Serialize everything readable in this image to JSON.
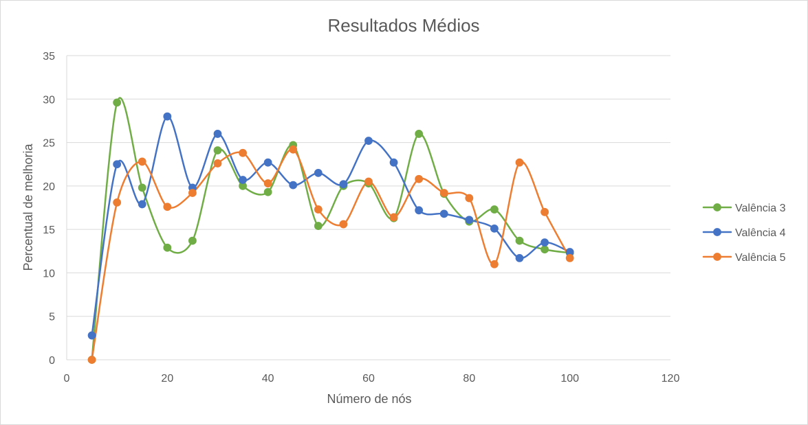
{
  "chart_data": {
    "type": "scatter",
    "title": "Resultados Médios",
    "xlabel": "Número de nós",
    "ylabel": "Percentual de melhoria",
    "xlim": [
      0,
      120
    ],
    "ylim": [
      0,
      35
    ],
    "xticks": [
      "0",
      "20",
      "40",
      "60",
      "80",
      "100",
      "120"
    ],
    "yticks": [
      "0",
      "5",
      "10",
      "15",
      "20",
      "25",
      "30",
      "35"
    ],
    "grid": "horizontal",
    "legend_position": "right",
    "line_style": "smoothed lines with markers",
    "series": [
      {
        "name": "Valência 3",
        "color": "#70ad47",
        "x": [
          5,
          10,
          15,
          20,
          25,
          30,
          35,
          40,
          45,
          50,
          55,
          60,
          65,
          70,
          75,
          80,
          85,
          90,
          95,
          100
        ],
        "y": [
          0,
          29.6,
          19.8,
          12.9,
          13.7,
          24.1,
          20.0,
          19.3,
          24.7,
          15.4,
          20.0,
          20.3,
          16.3,
          26.0,
          19.1,
          15.9,
          17.3,
          13.7,
          12.7,
          12.3
        ]
      },
      {
        "name": "Valência 4",
        "color": "#4472c4",
        "x": [
          5,
          10,
          15,
          20,
          25,
          30,
          35,
          40,
          45,
          50,
          55,
          60,
          65,
          70,
          75,
          80,
          85,
          90,
          95,
          100
        ],
        "y": [
          2.8,
          22.5,
          17.9,
          28.0,
          19.8,
          26.0,
          20.7,
          22.7,
          20.1,
          21.5,
          20.2,
          25.2,
          22.7,
          17.2,
          16.8,
          16.1,
          15.1,
          11.7,
          13.5,
          12.4
        ]
      },
      {
        "name": "Valência 5",
        "color": "#ed7d31",
        "x": [
          5,
          10,
          15,
          20,
          25,
          30,
          35,
          40,
          45,
          50,
          55,
          60,
          65,
          70,
          75,
          80,
          85,
          90,
          95,
          100
        ],
        "y": [
          0,
          18.1,
          22.8,
          17.6,
          19.2,
          22.6,
          23.8,
          20.3,
          24.2,
          17.3,
          15.6,
          20.5,
          16.4,
          20.8,
          19.2,
          18.6,
          11.0,
          22.7,
          17.0,
          11.7
        ]
      }
    ]
  }
}
